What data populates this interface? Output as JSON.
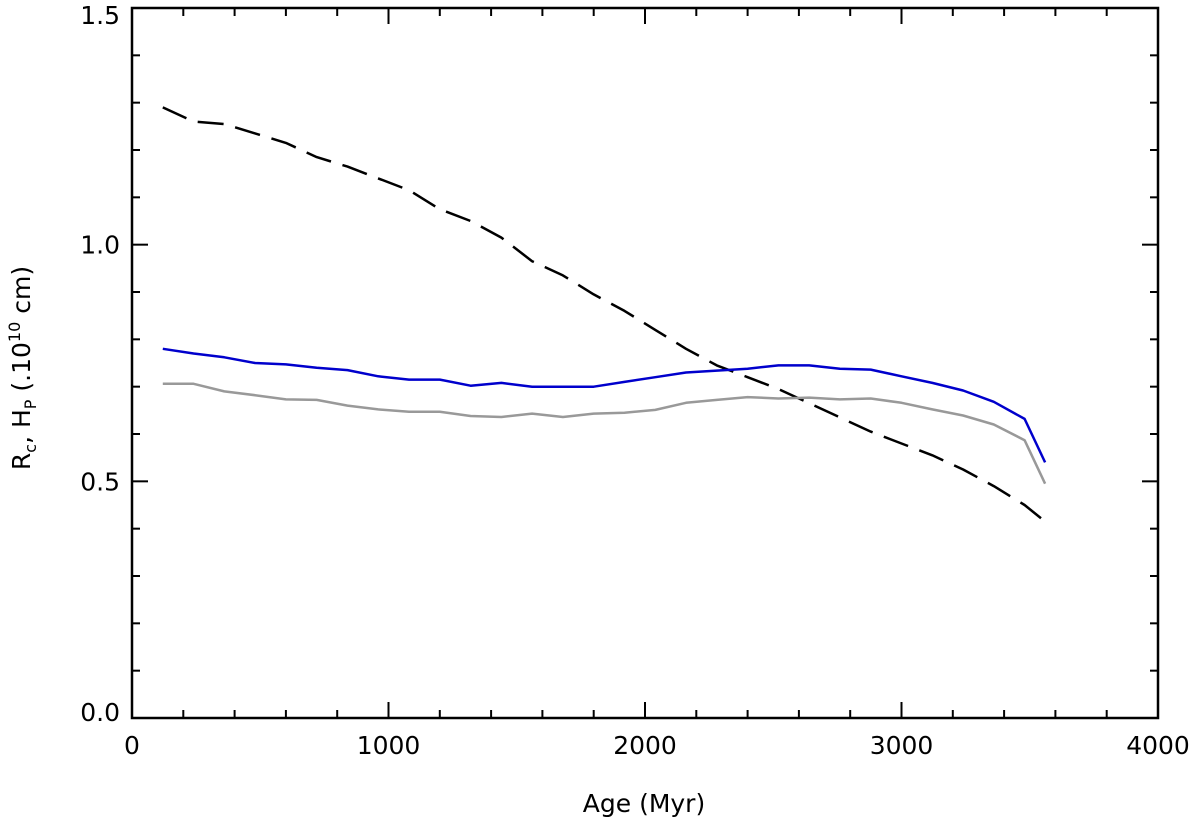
{
  "chart_data": {
    "type": "line",
    "title": "",
    "xlabel": "Age (Myr)",
    "ylabel": {
      "r": "R",
      "c": "c",
      "comma": ", ",
      "h": "H",
      "p": "P",
      "pre": " (.10",
      "exp": "10",
      "post": " cm)"
    },
    "xlim": [
      0,
      4000
    ],
    "ylim": [
      0,
      1.5
    ],
    "xticks": [
      0,
      1000,
      2000,
      3000,
      4000
    ],
    "xtick_labels": [
      "0",
      "1000",
      "2000",
      "3000",
      "4000"
    ],
    "yticks": [
      0,
      0.5,
      1.0,
      1.5
    ],
    "ytick_labels": [
      "0.0",
      "0.5",
      "1.0",
      "1.5"
    ],
    "series": [
      {
        "name": "dashed-black",
        "color": "#000000",
        "dashed": true,
        "x": [
          120,
          240,
          360,
          480,
          600,
          720,
          840,
          960,
          1080,
          1200,
          1320,
          1440,
          1560,
          1680,
          1800,
          1920,
          2040,
          2160,
          2280,
          2400,
          2520,
          2640,
          2760,
          2880,
          3000,
          3120,
          3240,
          3360,
          3480,
          3560
        ],
        "y": [
          1.29,
          1.26,
          1.255,
          1.235,
          1.215,
          1.185,
          1.165,
          1.14,
          1.115,
          1.075,
          1.05,
          1.015,
          0.965,
          0.935,
          0.895,
          0.86,
          0.82,
          0.78,
          0.745,
          0.72,
          0.695,
          0.665,
          0.635,
          0.605,
          0.58,
          0.555,
          0.525,
          0.49,
          0.45,
          0.415
        ]
      },
      {
        "name": "blue",
        "color": "#0000cc",
        "dashed": false,
        "x": [
          120,
          240,
          360,
          480,
          600,
          720,
          840,
          960,
          1080,
          1200,
          1320,
          1440,
          1560,
          1680,
          1800,
          1920,
          2040,
          2160,
          2280,
          2400,
          2520,
          2640,
          2760,
          2880,
          3000,
          3120,
          3240,
          3360,
          3480,
          3560
        ],
        "y": [
          0.78,
          0.77,
          0.762,
          0.75,
          0.747,
          0.74,
          0.735,
          0.722,
          0.715,
          0.715,
          0.702,
          0.708,
          0.7,
          0.7,
          0.7,
          0.71,
          0.72,
          0.73,
          0.734,
          0.738,
          0.745,
          0.745,
          0.738,
          0.736,
          0.722,
          0.708,
          0.692,
          0.668,
          0.632,
          0.54
        ]
      },
      {
        "name": "gray",
        "color": "#999999",
        "dashed": false,
        "x": [
          120,
          240,
          360,
          480,
          600,
          720,
          840,
          960,
          1080,
          1200,
          1320,
          1440,
          1560,
          1680,
          1800,
          1920,
          2040,
          2160,
          2280,
          2400,
          2520,
          2640,
          2760,
          2880,
          3000,
          3120,
          3240,
          3360,
          3480,
          3560
        ],
        "y": [
          0.706,
          0.706,
          0.69,
          0.682,
          0.673,
          0.672,
          0.66,
          0.652,
          0.647,
          0.647,
          0.638,
          0.636,
          0.643,
          0.636,
          0.643,
          0.645,
          0.651,
          0.666,
          0.672,
          0.678,
          0.675,
          0.677,
          0.673,
          0.675,
          0.666,
          0.652,
          0.639,
          0.62,
          0.587,
          0.495
        ]
      }
    ]
  }
}
